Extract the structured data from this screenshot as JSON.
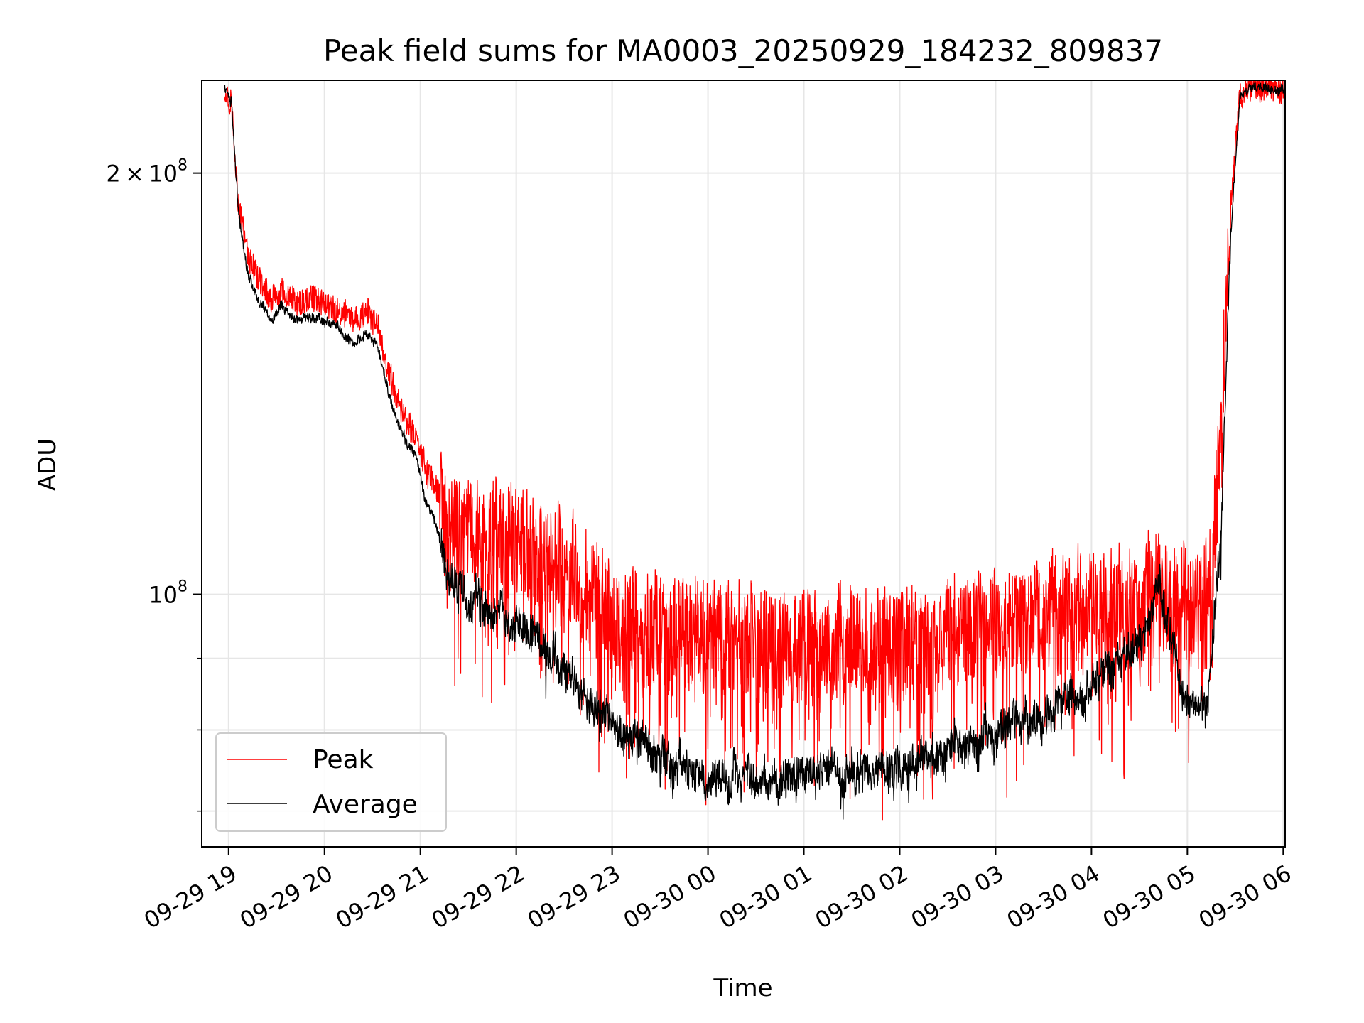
{
  "chart_data": {
    "type": "line",
    "title": "Peak field sums for MA0003_20250929_184232_809837",
    "xlabel": "Time",
    "ylabel": "ADU",
    "yscale": "log",
    "xlim": [
      18.72,
      30.02
    ],
    "ylim": [
      66000000,
      233000000
    ],
    "grid": true,
    "legend": {
      "location": "lower-left",
      "entries": [
        "Peak",
        "Average"
      ]
    },
    "x_ticks": [
      {
        "value": 19,
        "label": "09-29 19"
      },
      {
        "value": 20,
        "label": "09-29 20"
      },
      {
        "value": 21,
        "label": "09-29 21"
      },
      {
        "value": 22,
        "label": "09-29 22"
      },
      {
        "value": 23,
        "label": "09-29 23"
      },
      {
        "value": 24,
        "label": "09-30 00"
      },
      {
        "value": 25,
        "label": "09-30 01"
      },
      {
        "value": 26,
        "label": "09-30 02"
      },
      {
        "value": 27,
        "label": "09-30 03"
      },
      {
        "value": 28,
        "label": "09-30 04"
      },
      {
        "value": 29,
        "label": "09-30 05"
      },
      {
        "value": 30,
        "label": "09-30 06"
      }
    ],
    "y_major_ticks": [
      {
        "value": 200000000,
        "mantissa": "2",
        "exponent": "8"
      },
      {
        "value": 100000000,
        "mantissa": "",
        "exponent": "8"
      }
    ],
    "y_minor_ticks": [
      70000000,
      80000000,
      90000000
    ],
    "series": [
      {
        "name": "Peak",
        "color": "#ff0000",
        "noise": 0.09,
        "points": [
          [
            18.96,
            230000000
          ],
          [
            19.03,
            225000000
          ],
          [
            19.1,
            190000000
          ],
          [
            19.2,
            175000000
          ],
          [
            19.3,
            168000000
          ],
          [
            19.45,
            162000000
          ],
          [
            19.55,
            164000000
          ],
          [
            19.7,
            161000000
          ],
          [
            19.9,
            163000000
          ],
          [
            20.1,
            160000000
          ],
          [
            20.3,
            157000000
          ],
          [
            20.45,
            159000000
          ],
          [
            20.55,
            155000000
          ],
          [
            20.7,
            142000000
          ],
          [
            20.85,
            133000000
          ],
          [
            20.95,
            130000000
          ],
          [
            21.05,
            123000000
          ],
          [
            21.15,
            120000000
          ],
          [
            21.3,
            112000000
          ],
          [
            21.6,
            111000000
          ],
          [
            22.0,
            110000000
          ],
          [
            22.5,
            105000000
          ],
          [
            23.0,
            97000000
          ],
          [
            23.5,
            95000000
          ],
          [
            24.0,
            94000000
          ],
          [
            24.5,
            93000000
          ],
          [
            25.0,
            92000000
          ],
          [
            25.5,
            93000000
          ],
          [
            26.0,
            92000000
          ],
          [
            26.5,
            93500000
          ],
          [
            27.0,
            95000000
          ],
          [
            27.5,
            97000000
          ],
          [
            28.0,
            99000000
          ],
          [
            28.5,
            100000000
          ],
          [
            28.7,
            103000000
          ],
          [
            28.9,
            100000000
          ],
          [
            29.1,
            96000000
          ],
          [
            29.25,
            105000000
          ],
          [
            29.35,
            130000000
          ],
          [
            29.45,
            190000000
          ],
          [
            29.55,
            228000000
          ],
          [
            29.65,
            230000000
          ],
          [
            30.02,
            230000000
          ]
        ]
      },
      {
        "name": "Average",
        "color": "#000000",
        "noise": 0.028,
        "points": [
          [
            18.96,
            230000000
          ],
          [
            19.03,
            225000000
          ],
          [
            19.1,
            188000000
          ],
          [
            19.2,
            170000000
          ],
          [
            19.3,
            163000000
          ],
          [
            19.45,
            157000000
          ],
          [
            19.55,
            160000000
          ],
          [
            19.7,
            157000000
          ],
          [
            19.9,
            158000000
          ],
          [
            20.1,
            156000000
          ],
          [
            20.3,
            151000000
          ],
          [
            20.45,
            154000000
          ],
          [
            20.55,
            150000000
          ],
          [
            20.7,
            137000000
          ],
          [
            20.85,
            128000000
          ],
          [
            20.95,
            126000000
          ],
          [
            21.05,
            117000000
          ],
          [
            21.15,
            113000000
          ],
          [
            21.3,
            103000000
          ],
          [
            21.6,
            99000000
          ],
          [
            22.0,
            95000000
          ],
          [
            22.5,
            89000000
          ],
          [
            23.0,
            81000000
          ],
          [
            23.5,
            76000000
          ],
          [
            24.0,
            74000000
          ],
          [
            24.5,
            74000000
          ],
          [
            25.0,
            74500000
          ],
          [
            25.5,
            75000000
          ],
          [
            26.0,
            75000000
          ],
          [
            26.5,
            78000000
          ],
          [
            27.0,
            79000000
          ],
          [
            27.5,
            82000000
          ],
          [
            28.0,
            86000000
          ],
          [
            28.5,
            92000000
          ],
          [
            28.7,
            101000000
          ],
          [
            28.85,
            91000000
          ],
          [
            29.0,
            84000000
          ],
          [
            29.2,
            83000000
          ],
          [
            29.35,
            110000000
          ],
          [
            29.45,
            180000000
          ],
          [
            29.55,
            227000000
          ],
          [
            29.65,
            230000000
          ],
          [
            30.02,
            230000000
          ]
        ]
      }
    ]
  }
}
